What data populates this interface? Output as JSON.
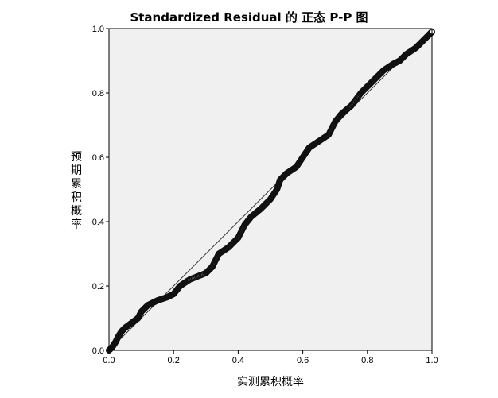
{
  "chart_data": {
    "type": "scatter",
    "title": "Standardized Residual 的 正态 P-P 图",
    "xlabel": "实测累积概率",
    "ylabel": "预期累积概率",
    "xlim": [
      0,
      1
    ],
    "ylim": [
      0,
      1
    ],
    "grid": false,
    "reference_line": {
      "from": [
        0,
        0
      ],
      "to": [
        1,
        1
      ]
    },
    "x_ticks": [
      "0.0",
      "0.2",
      "0.4",
      "0.6",
      "0.8",
      "1.0"
    ],
    "y_ticks": [
      "0.0",
      "0.2",
      "0.4",
      "0.6",
      "0.8",
      "1.0"
    ],
    "series": [
      {
        "curve_points": [
          [
            0.0,
            0.0
          ],
          [
            0.01,
            0.01
          ],
          [
            0.02,
            0.025
          ],
          [
            0.03,
            0.045
          ],
          [
            0.04,
            0.06
          ],
          [
            0.05,
            0.07
          ],
          [
            0.07,
            0.085
          ],
          [
            0.09,
            0.1
          ],
          [
            0.1,
            0.12
          ],
          [
            0.12,
            0.14
          ],
          [
            0.15,
            0.155
          ],
          [
            0.18,
            0.165
          ],
          [
            0.2,
            0.175
          ],
          [
            0.22,
            0.2
          ],
          [
            0.25,
            0.22
          ],
          [
            0.3,
            0.24
          ],
          [
            0.32,
            0.26
          ],
          [
            0.34,
            0.3
          ],
          [
            0.37,
            0.32
          ],
          [
            0.4,
            0.35
          ],
          [
            0.42,
            0.39
          ],
          [
            0.44,
            0.415
          ],
          [
            0.47,
            0.44
          ],
          [
            0.5,
            0.47
          ],
          [
            0.52,
            0.5
          ],
          [
            0.53,
            0.53
          ],
          [
            0.55,
            0.55
          ],
          [
            0.58,
            0.57
          ],
          [
            0.6,
            0.6
          ],
          [
            0.62,
            0.63
          ],
          [
            0.65,
            0.65
          ],
          [
            0.68,
            0.67
          ],
          [
            0.7,
            0.71
          ],
          [
            0.72,
            0.735
          ],
          [
            0.75,
            0.76
          ],
          [
            0.78,
            0.8
          ],
          [
            0.8,
            0.82
          ],
          [
            0.82,
            0.84
          ],
          [
            0.85,
            0.87
          ],
          [
            0.88,
            0.89
          ],
          [
            0.9,
            0.9
          ],
          [
            0.92,
            0.92
          ],
          [
            0.95,
            0.94
          ],
          [
            0.97,
            0.96
          ],
          [
            0.99,
            0.98
          ],
          [
            1.0,
            0.99
          ]
        ]
      }
    ]
  },
  "colors": {
    "plot_background": "#f0f0f0",
    "marker_edge": "#111111",
    "marker_fill": "#ffffff",
    "reference_line": "#333333"
  }
}
